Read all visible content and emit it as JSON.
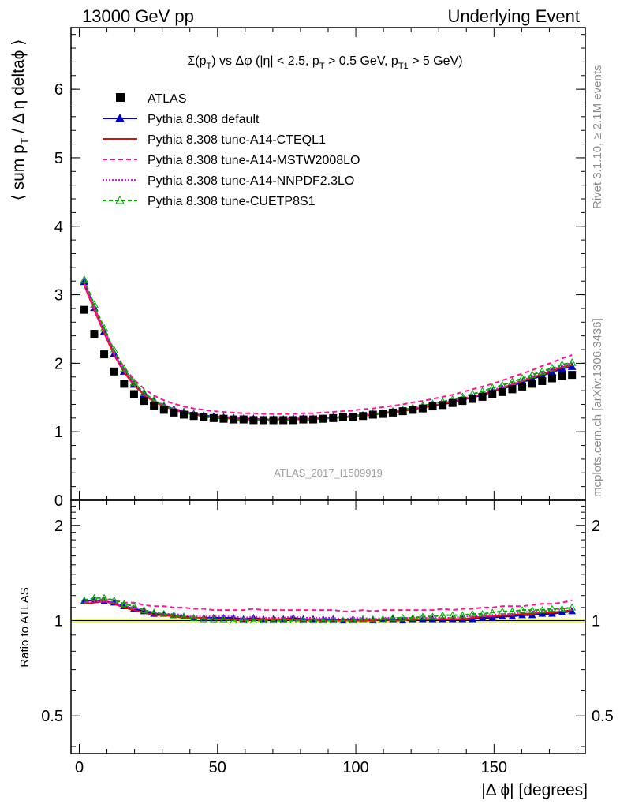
{
  "header": {
    "left": "13000 GeV pp",
    "right": "Underlying Event"
  },
  "side_labels": {
    "rivet": "Rivet 3.1.10, ≥ 2.1M events",
    "mcplots": "mcplots.cern.ch [arXiv:1306.3436]"
  },
  "watermark": "ATLAS_2017_I1509919",
  "chart_data": [
    {
      "type": "scatter",
      "panel": "main",
      "title_parts": {
        "pre": "Σ(p",
        "sub1": "T",
        "mid1": ") vs Δφ (|η| < 2.5, p",
        "sub2": "T",
        "mid2": " > 0.5 GeV, p",
        "sub3": "T1",
        "post": " > 5 GeV)"
      },
      "ylabel_parts": {
        "pre": "⟨ sum p",
        "sub": "T",
        "post": " / Δ η deltaϕ ⟩"
      },
      "xlim": [
        -3,
        183
      ],
      "ylim": [
        0,
        6.9
      ],
      "yticks": [
        0,
        1,
        2,
        3,
        4,
        5,
        6
      ],
      "legend_position": "top-left",
      "x": [
        1.8,
        5.4,
        9.0,
        12.6,
        16.2,
        19.8,
        23.4,
        27.0,
        30.6,
        34.2,
        37.8,
        41.4,
        45.0,
        48.6,
        52.2,
        55.8,
        59.4,
        63.0,
        66.6,
        70.2,
        73.8,
        77.4,
        81.0,
        84.6,
        88.2,
        91.8,
        95.4,
        99.0,
        102.6,
        106.2,
        109.8,
        113.4,
        117.0,
        120.6,
        124.2,
        127.8,
        131.4,
        135.0,
        138.6,
        142.2,
        145.8,
        149.4,
        153.0,
        156.6,
        160.2,
        163.8,
        167.4,
        171.0,
        174.6,
        178.2
      ],
      "series": [
        {
          "name": "ATLAS",
          "style": "data",
          "color": "#000000",
          "values": [
            2.78,
            2.43,
            2.13,
            1.88,
            1.7,
            1.55,
            1.45,
            1.38,
            1.32,
            1.28,
            1.25,
            1.23,
            1.21,
            1.2,
            1.19,
            1.18,
            1.18,
            1.17,
            1.17,
            1.17,
            1.17,
            1.17,
            1.18,
            1.18,
            1.19,
            1.2,
            1.21,
            1.22,
            1.23,
            1.25,
            1.26,
            1.28,
            1.3,
            1.32,
            1.34,
            1.37,
            1.39,
            1.42,
            1.45,
            1.48,
            1.51,
            1.55,
            1.58,
            1.62,
            1.66,
            1.7,
            1.74,
            1.78,
            1.81,
            1.83
          ]
        },
        {
          "name": "Pythia 8.308 default",
          "style": "solid-triangle",
          "color": "#0000cc",
          "values": [
            3.19,
            2.81,
            2.46,
            2.14,
            1.88,
            1.69,
            1.55,
            1.45,
            1.38,
            1.33,
            1.29,
            1.26,
            1.24,
            1.22,
            1.21,
            1.2,
            1.19,
            1.19,
            1.18,
            1.18,
            1.18,
            1.19,
            1.19,
            1.19,
            1.2,
            1.21,
            1.21,
            1.23,
            1.24,
            1.25,
            1.27,
            1.29,
            1.3,
            1.33,
            1.35,
            1.38,
            1.4,
            1.43,
            1.47,
            1.5,
            1.54,
            1.58,
            1.63,
            1.67,
            1.72,
            1.77,
            1.82,
            1.87,
            1.92,
            1.95
          ]
        },
        {
          "name": "Pythia 8.308 tune-A14-CTEQL1",
          "style": "solid",
          "color": "#ff0000",
          "values": [
            3.14,
            2.78,
            2.44,
            2.12,
            1.87,
            1.68,
            1.54,
            1.44,
            1.37,
            1.32,
            1.28,
            1.25,
            1.23,
            1.21,
            1.2,
            1.19,
            1.18,
            1.18,
            1.18,
            1.18,
            1.18,
            1.18,
            1.18,
            1.19,
            1.19,
            1.2,
            1.21,
            1.22,
            1.23,
            1.25,
            1.27,
            1.28,
            1.3,
            1.33,
            1.35,
            1.38,
            1.41,
            1.44,
            1.47,
            1.51,
            1.55,
            1.59,
            1.64,
            1.69,
            1.74,
            1.79,
            1.84,
            1.89,
            1.94,
            1.98
          ]
        },
        {
          "name": "Pythia 8.308 tune-A14-MSTW2008LO",
          "style": "dashed",
          "color": "#ff1493",
          "values": [
            3.17,
            2.82,
            2.49,
            2.18,
            1.94,
            1.76,
            1.63,
            1.53,
            1.46,
            1.41,
            1.37,
            1.34,
            1.32,
            1.3,
            1.29,
            1.28,
            1.27,
            1.27,
            1.26,
            1.26,
            1.26,
            1.26,
            1.27,
            1.27,
            1.28,
            1.29,
            1.3,
            1.31,
            1.33,
            1.34,
            1.36,
            1.38,
            1.4,
            1.43,
            1.45,
            1.48,
            1.51,
            1.54,
            1.58,
            1.62,
            1.66,
            1.7,
            1.75,
            1.8,
            1.85,
            1.9,
            1.96,
            2.01,
            2.07,
            2.12
          ]
        },
        {
          "name": "Pythia 8.308 tune-A14-NNPDF2.3LO",
          "style": "dotted",
          "color": "#ff00ff",
          "values": [
            3.16,
            2.8,
            2.46,
            2.14,
            1.89,
            1.7,
            1.56,
            1.46,
            1.39,
            1.34,
            1.3,
            1.27,
            1.25,
            1.23,
            1.22,
            1.21,
            1.2,
            1.2,
            1.19,
            1.19,
            1.19,
            1.2,
            1.2,
            1.2,
            1.21,
            1.22,
            1.22,
            1.24,
            1.25,
            1.26,
            1.28,
            1.3,
            1.32,
            1.34,
            1.37,
            1.39,
            1.42,
            1.45,
            1.49,
            1.52,
            1.56,
            1.61,
            1.65,
            1.7,
            1.75,
            1.81,
            1.86,
            1.91,
            1.96,
            2.01
          ]
        },
        {
          "name": "Pythia 8.308 tune-CUETP8S1",
          "style": "dashed-open-triangle",
          "color": "#00aa00",
          "values": [
            3.22,
            2.86,
            2.51,
            2.19,
            1.92,
            1.72,
            1.57,
            1.46,
            1.38,
            1.32,
            1.28,
            1.25,
            1.22,
            1.2,
            1.19,
            1.18,
            1.17,
            1.17,
            1.16,
            1.16,
            1.16,
            1.17,
            1.17,
            1.18,
            1.19,
            1.2,
            1.21,
            1.22,
            1.24,
            1.26,
            1.28,
            1.3,
            1.32,
            1.35,
            1.38,
            1.41,
            1.44,
            1.47,
            1.51,
            1.55,
            1.59,
            1.64,
            1.68,
            1.73,
            1.78,
            1.83,
            1.88,
            1.93,
            1.98,
            2.01
          ]
        }
      ]
    },
    {
      "type": "scatter",
      "panel": "ratio",
      "ylabel": "Ratio to ATLAS",
      "xlabel": "|Δ ϕ| [degrees]",
      "xlim": [
        -3,
        183
      ],
      "ylim": [
        0.38,
        2.4
      ],
      "ytick_labels": [
        "0.5",
        "1",
        "2"
      ],
      "yticks": [
        0.5,
        1,
        2
      ],
      "xticks": [
        0,
        50,
        100,
        150
      ],
      "xtick_labels": [
        "0",
        "50",
        "100",
        "150"
      ],
      "band": {
        "color": "#e8f070",
        "low": 0.985,
        "high": 1.015
      },
      "series": [
        {
          "name": "Pythia 8.308 default",
          "color": "#0000cc",
          "values": [
            1.15,
            1.16,
            1.15,
            1.14,
            1.11,
            1.09,
            1.07,
            1.05,
            1.05,
            1.04,
            1.03,
            1.02,
            1.02,
            1.02,
            1.02,
            1.02,
            1.01,
            1.02,
            1.01,
            1.01,
            1.01,
            1.02,
            1.01,
            1.01,
            1.01,
            1.01,
            1.0,
            1.01,
            1.01,
            1.0,
            1.01,
            1.01,
            1.0,
            1.01,
            1.01,
            1.01,
            1.01,
            1.01,
            1.01,
            1.01,
            1.02,
            1.02,
            1.03,
            1.03,
            1.04,
            1.04,
            1.05,
            1.05,
            1.06,
            1.07
          ]
        },
        {
          "name": "Pythia 8.308 tune-A14-CTEQL1",
          "color": "#ff0000",
          "values": [
            1.13,
            1.14,
            1.15,
            1.13,
            1.1,
            1.08,
            1.06,
            1.04,
            1.04,
            1.03,
            1.02,
            1.02,
            1.02,
            1.01,
            1.01,
            1.01,
            1.0,
            1.01,
            1.01,
            1.01,
            1.01,
            1.01,
            1.0,
            1.01,
            1.0,
            1.0,
            1.0,
            1.0,
            1.0,
            1.0,
            1.01,
            1.0,
            1.0,
            1.01,
            1.01,
            1.01,
            1.01,
            1.01,
            1.01,
            1.02,
            1.03,
            1.03,
            1.04,
            1.04,
            1.05,
            1.05,
            1.06,
            1.06,
            1.07,
            1.08
          ]
        },
        {
          "name": "Pythia 8.308 tune-A14-MSTW2008LO",
          "color": "#ff1493",
          "values": [
            1.14,
            1.16,
            1.17,
            1.16,
            1.14,
            1.14,
            1.12,
            1.11,
            1.11,
            1.1,
            1.1,
            1.09,
            1.09,
            1.08,
            1.08,
            1.08,
            1.08,
            1.09,
            1.08,
            1.08,
            1.08,
            1.08,
            1.08,
            1.08,
            1.08,
            1.08,
            1.07,
            1.07,
            1.08,
            1.07,
            1.08,
            1.08,
            1.08,
            1.08,
            1.08,
            1.08,
            1.09,
            1.08,
            1.09,
            1.09,
            1.1,
            1.1,
            1.11,
            1.11,
            1.11,
            1.12,
            1.13,
            1.13,
            1.14,
            1.16
          ]
        },
        {
          "name": "Pythia 8.308 tune-A14-NNPDF2.3LO",
          "color": "#ff00ff",
          "values": [
            1.14,
            1.15,
            1.15,
            1.14,
            1.11,
            1.1,
            1.08,
            1.06,
            1.05,
            1.05,
            1.04,
            1.03,
            1.03,
            1.03,
            1.03,
            1.03,
            1.02,
            1.03,
            1.02,
            1.02,
            1.02,
            1.03,
            1.02,
            1.02,
            1.02,
            1.02,
            1.01,
            1.02,
            1.02,
            1.01,
            1.02,
            1.02,
            1.02,
            1.02,
            1.02,
            1.02,
            1.02,
            1.02,
            1.03,
            1.03,
            1.04,
            1.04,
            1.05,
            1.05,
            1.06,
            1.07,
            1.07,
            1.08,
            1.09,
            1.1
          ]
        },
        {
          "name": "Pythia 8.308 tune-CUETP8S1",
          "color": "#00aa00",
          "values": [
            1.16,
            1.18,
            1.18,
            1.16,
            1.13,
            1.11,
            1.08,
            1.06,
            1.05,
            1.04,
            1.03,
            1.02,
            1.01,
            1.01,
            1.01,
            1.0,
            1.0,
            1.0,
            1.0,
            1.0,
            1.0,
            1.0,
            1.0,
            1.0,
            1.0,
            1.0,
            1.0,
            1.0,
            1.01,
            1.01,
            1.01,
            1.02,
            1.02,
            1.02,
            1.03,
            1.03,
            1.04,
            1.04,
            1.04,
            1.05,
            1.05,
            1.06,
            1.07,
            1.07,
            1.08,
            1.08,
            1.08,
            1.09,
            1.09,
            1.1
          ]
        }
      ]
    }
  ]
}
